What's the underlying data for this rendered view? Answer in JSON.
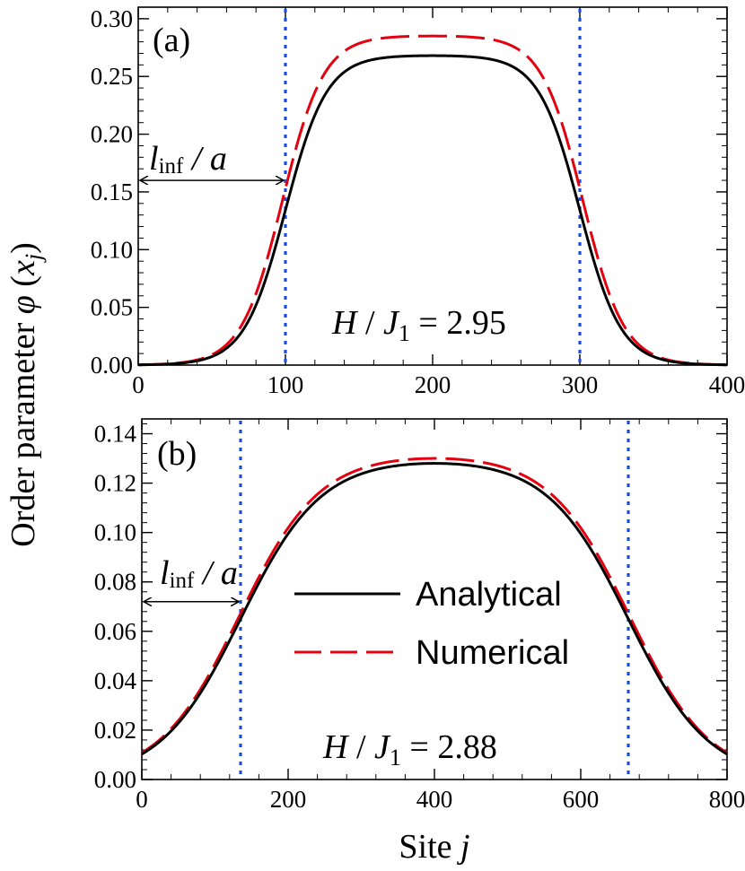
{
  "chart_data": [
    {
      "type": "line",
      "panel_label": "(a)",
      "xlim": [
        0,
        400
      ],
      "ylim": [
        0,
        0.31
      ],
      "xticks": [
        0,
        100,
        200,
        300,
        400
      ],
      "xtick_labels": [
        "0",
        "100",
        "200",
        "300",
        "400"
      ],
      "yticks": [
        0,
        0.05,
        0.1,
        0.15,
        0.2,
        0.25,
        0.3
      ],
      "ytick_labels": [
        "0.00",
        "0.05",
        "0.10",
        "0.15",
        "0.20",
        "0.25",
        "0.30"
      ],
      "field_label": {
        "H": "H",
        "sep": " / ",
        "J": "J",
        "sub": "1",
        "value": " = 2.95"
      },
      "width_label": {
        "l": "l",
        "sub": "inf",
        "rest": " / a"
      },
      "width_arrow": {
        "from": 0,
        "to": 100,
        "y": 0.16
      },
      "vlines": [
        100,
        300
      ],
      "series": [
        {
          "name": "Analytical",
          "style": "solid",
          "color": "#000000",
          "center": 200,
          "half_width": 100,
          "plateau": 0.268,
          "edge_width": 14
        },
        {
          "name": "Numerical",
          "style": "dashed",
          "color": "#e3000f",
          "center": 200,
          "half_width": 102,
          "plateau": 0.285,
          "edge_width": 14
        }
      ]
    },
    {
      "type": "line",
      "panel_label": "(b)",
      "xlim": [
        0,
        800
      ],
      "ylim": [
        0,
        0.146
      ],
      "xticks": [
        0,
        200,
        400,
        600,
        800
      ],
      "xtick_labels": [
        "0",
        "200",
        "400",
        "600",
        "800"
      ],
      "yticks": [
        0,
        0.02,
        0.04,
        0.06,
        0.08,
        0.1,
        0.12,
        0.14
      ],
      "ytick_labels": [
        "0.00",
        "0.02",
        "0.04",
        "0.06",
        "0.08",
        "0.10",
        "0.12",
        "0.14"
      ],
      "field_label": {
        "H": "H",
        "sep": " / ",
        "J": "J",
        "sub": "1",
        "value": " = 2.88"
      },
      "width_label": {
        "l": "l",
        "sub": "inf",
        "rest": " / a"
      },
      "width_arrow": {
        "from": 0,
        "to": 135,
        "y": 0.072
      },
      "vlines": [
        135,
        665
      ],
      "series": [
        {
          "name": "Analytical",
          "style": "solid",
          "color": "#000000",
          "center": 400,
          "half_width": 265,
          "plateau": 0.128,
          "edge_width": 55
        },
        {
          "name": "Numerical",
          "style": "dashed",
          "color": "#e3000f",
          "center": 400,
          "half_width": 267,
          "plateau": 0.13,
          "edge_width": 55
        }
      ]
    }
  ],
  "shared_ylabel": {
    "text": "Order parameter  ",
    "phi": "φ",
    "open": " (",
    "x": "x",
    "sub": "j",
    "close": ")"
  },
  "shared_xlabel": {
    "text": "Site ",
    "j": "j"
  },
  "legend": [
    {
      "label": "Analytical",
      "color": "#000000",
      "style": "solid"
    },
    {
      "label": "Numerical",
      "color": "#e3000f",
      "style": "dashed"
    }
  ],
  "colors": {
    "vline": "#1a4de6",
    "analytical": "#000000",
    "numerical": "#e3000f"
  }
}
